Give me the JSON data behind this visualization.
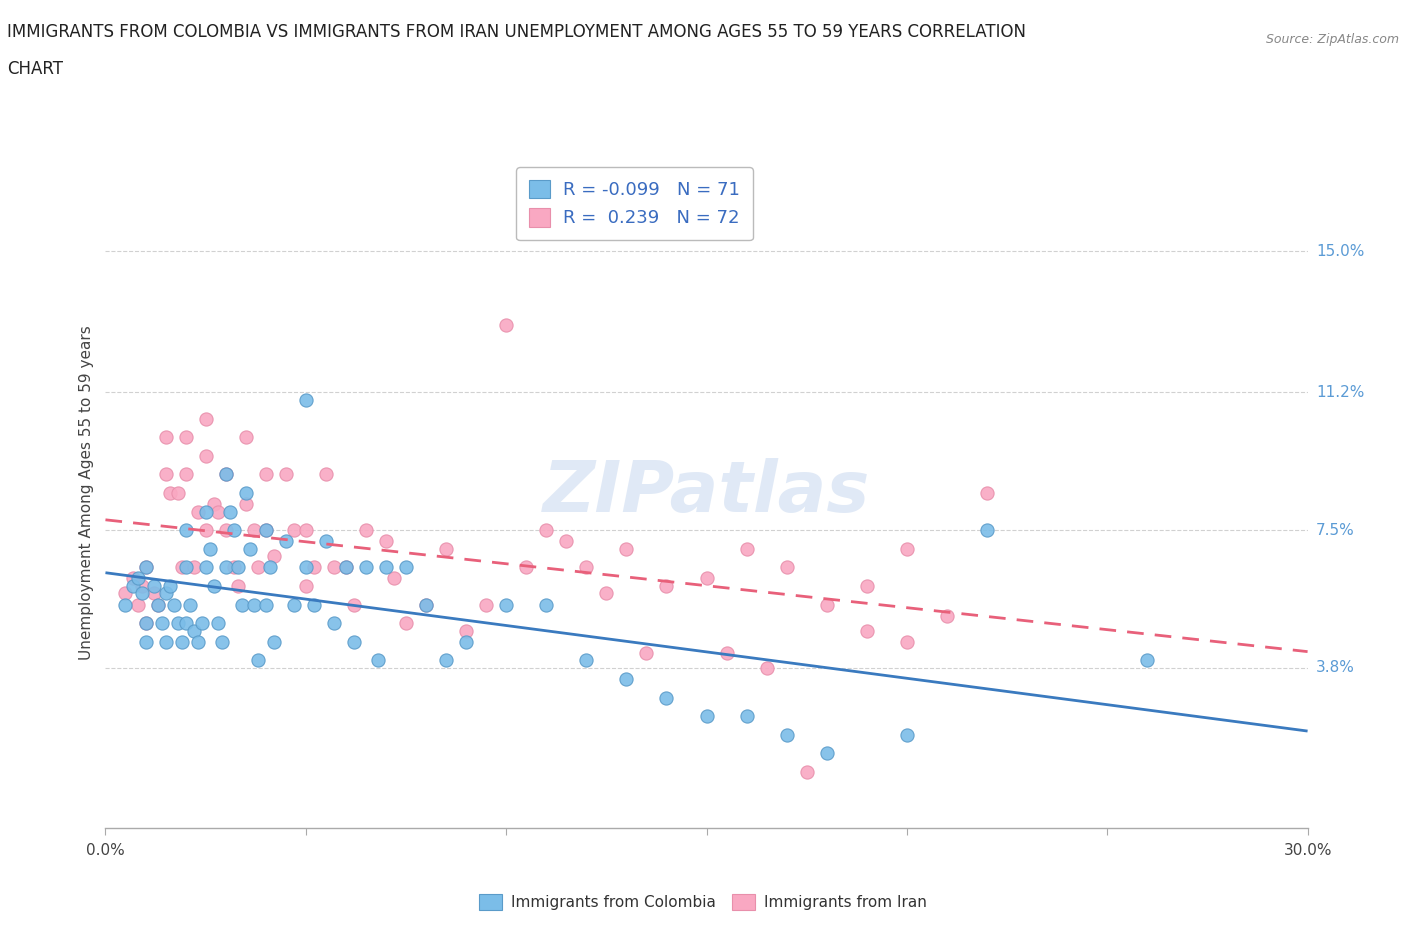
{
  "title_line1": "IMMIGRANTS FROM COLOMBIA VS IMMIGRANTS FROM IRAN UNEMPLOYMENT AMONG AGES 55 TO 59 YEARS CORRELATION",
  "title_line2": "CHART",
  "source": "Source: ZipAtlas.com",
  "ylabel": "Unemployment Among Ages 55 to 59 years",
  "xlim": [
    0.0,
    0.3
  ],
  "ylim": [
    -0.005,
    0.175
  ],
  "xticks": [
    0.0,
    0.05,
    0.1,
    0.15,
    0.2,
    0.25,
    0.3
  ],
  "xticklabels": [
    "0.0%",
    "",
    "",
    "",
    "",
    "",
    "30.0%"
  ],
  "ytick_positions": [
    0.038,
    0.075,
    0.112,
    0.15
  ],
  "ytick_labels": [
    "3.8%",
    "7.5%",
    "11.2%",
    "15.0%"
  ],
  "colombia_color": "#7bbde8",
  "iran_color": "#f9a8c2",
  "trend_colombia_color": "#3a7abf",
  "trend_iran_color": "#e8607a",
  "trend_iran_dashed": true,
  "R_colombia": -0.099,
  "N_colombia": 71,
  "R_iran": 0.239,
  "N_iran": 72,
  "colombia_x": [
    0.005,
    0.007,
    0.008,
    0.009,
    0.01,
    0.01,
    0.01,
    0.012,
    0.013,
    0.014,
    0.015,
    0.015,
    0.016,
    0.017,
    0.018,
    0.019,
    0.02,
    0.02,
    0.02,
    0.021,
    0.022,
    0.023,
    0.024,
    0.025,
    0.025,
    0.026,
    0.027,
    0.028,
    0.029,
    0.03,
    0.03,
    0.031,
    0.032,
    0.033,
    0.034,
    0.035,
    0.036,
    0.037,
    0.038,
    0.04,
    0.04,
    0.041,
    0.042,
    0.045,
    0.047,
    0.05,
    0.05,
    0.052,
    0.055,
    0.057,
    0.06,
    0.062,
    0.065,
    0.068,
    0.07,
    0.075,
    0.08,
    0.085,
    0.09,
    0.1,
    0.11,
    0.12,
    0.13,
    0.14,
    0.15,
    0.16,
    0.17,
    0.18,
    0.2,
    0.22,
    0.26
  ],
  "colombia_y": [
    0.055,
    0.06,
    0.062,
    0.058,
    0.065,
    0.05,
    0.045,
    0.06,
    0.055,
    0.05,
    0.058,
    0.045,
    0.06,
    0.055,
    0.05,
    0.045,
    0.075,
    0.065,
    0.05,
    0.055,
    0.048,
    0.045,
    0.05,
    0.08,
    0.065,
    0.07,
    0.06,
    0.05,
    0.045,
    0.09,
    0.065,
    0.08,
    0.075,
    0.065,
    0.055,
    0.085,
    0.07,
    0.055,
    0.04,
    0.075,
    0.055,
    0.065,
    0.045,
    0.072,
    0.055,
    0.11,
    0.065,
    0.055,
    0.072,
    0.05,
    0.065,
    0.045,
    0.065,
    0.04,
    0.065,
    0.065,
    0.055,
    0.04,
    0.045,
    0.055,
    0.055,
    0.04,
    0.035,
    0.03,
    0.025,
    0.025,
    0.02,
    0.015,
    0.02,
    0.075,
    0.04
  ],
  "iran_x": [
    0.005,
    0.007,
    0.008,
    0.009,
    0.01,
    0.01,
    0.012,
    0.013,
    0.015,
    0.015,
    0.016,
    0.018,
    0.019,
    0.02,
    0.02,
    0.022,
    0.023,
    0.025,
    0.025,
    0.025,
    0.027,
    0.028,
    0.03,
    0.03,
    0.032,
    0.033,
    0.035,
    0.035,
    0.037,
    0.038,
    0.04,
    0.04,
    0.042,
    0.045,
    0.047,
    0.05,
    0.05,
    0.052,
    0.055,
    0.057,
    0.06,
    0.062,
    0.065,
    0.07,
    0.072,
    0.075,
    0.08,
    0.085,
    0.09,
    0.095,
    0.1,
    0.105,
    0.11,
    0.115,
    0.12,
    0.125,
    0.13,
    0.14,
    0.15,
    0.16,
    0.17,
    0.18,
    0.19,
    0.2,
    0.21,
    0.22,
    0.135,
    0.155,
    0.165,
    0.175,
    0.19,
    0.2
  ],
  "iran_y": [
    0.058,
    0.062,
    0.055,
    0.06,
    0.065,
    0.05,
    0.058,
    0.055,
    0.1,
    0.09,
    0.085,
    0.085,
    0.065,
    0.1,
    0.09,
    0.065,
    0.08,
    0.105,
    0.095,
    0.075,
    0.082,
    0.08,
    0.09,
    0.075,
    0.065,
    0.06,
    0.1,
    0.082,
    0.075,
    0.065,
    0.09,
    0.075,
    0.068,
    0.09,
    0.075,
    0.075,
    0.06,
    0.065,
    0.09,
    0.065,
    0.065,
    0.055,
    0.075,
    0.072,
    0.062,
    0.05,
    0.055,
    0.07,
    0.048,
    0.055,
    0.13,
    0.065,
    0.075,
    0.072,
    0.065,
    0.058,
    0.07,
    0.06,
    0.062,
    0.07,
    0.065,
    0.055,
    0.06,
    0.07,
    0.052,
    0.085,
    0.042,
    0.042,
    0.038,
    0.01,
    0.048,
    0.045
  ],
  "background_color": "#ffffff",
  "grid_color": "#cccccc",
  "title_fontsize": 12,
  "label_fontsize": 11,
  "tick_fontsize": 11,
  "source_fontsize": 9
}
